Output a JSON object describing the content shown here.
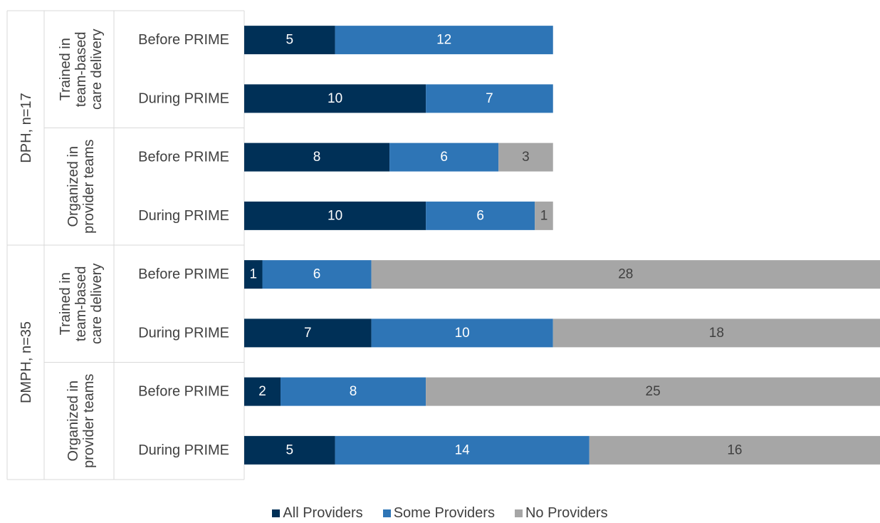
{
  "chart_data": {
    "type": "bar",
    "orientation": "horizontal",
    "stacked": true,
    "title": "",
    "xlabel": "",
    "ylabel": "",
    "xlim": [
      0,
      35
    ],
    "grid": false,
    "legend_position": "bottom",
    "groups": [
      {
        "label": "DPH, n=17",
        "start": 0,
        "end": 4
      },
      {
        "label": "DMPH, n=35",
        "start": 4,
        "end": 8
      }
    ],
    "subgroups": [
      {
        "label_lines": [
          "Trained in",
          "team-based",
          "care delivery"
        ],
        "start": 0,
        "end": 2
      },
      {
        "label_lines": [
          "Organized in",
          "provider teams"
        ],
        "start": 2,
        "end": 4
      },
      {
        "label_lines": [
          "Trained in",
          "team-based",
          "care delivery"
        ],
        "start": 4,
        "end": 6
      },
      {
        "label_lines": [
          "Organized in",
          "provider teams"
        ],
        "start": 6,
        "end": 8
      }
    ],
    "categories": [
      "Before PRIME",
      "During PRIME",
      "Before PRIME",
      "During PRIME",
      "Before PRIME",
      "During PRIME",
      "Before PRIME",
      "During PRIME"
    ],
    "series": [
      {
        "name": "All Providers",
        "color": "#003057",
        "label_color": "#ffffff",
        "values": [
          5,
          10,
          8,
          10,
          1,
          7,
          2,
          5
        ]
      },
      {
        "name": "Some Providers",
        "color": "#2e75b6",
        "label_color": "#ffffff",
        "values": [
          12,
          7,
          6,
          6,
          6,
          10,
          8,
          14
        ]
      },
      {
        "name": "No Providers",
        "color": "#a6a6a6",
        "label_color": "#404040",
        "values": [
          0,
          0,
          3,
          1,
          28,
          18,
          25,
          16
        ]
      }
    ]
  }
}
